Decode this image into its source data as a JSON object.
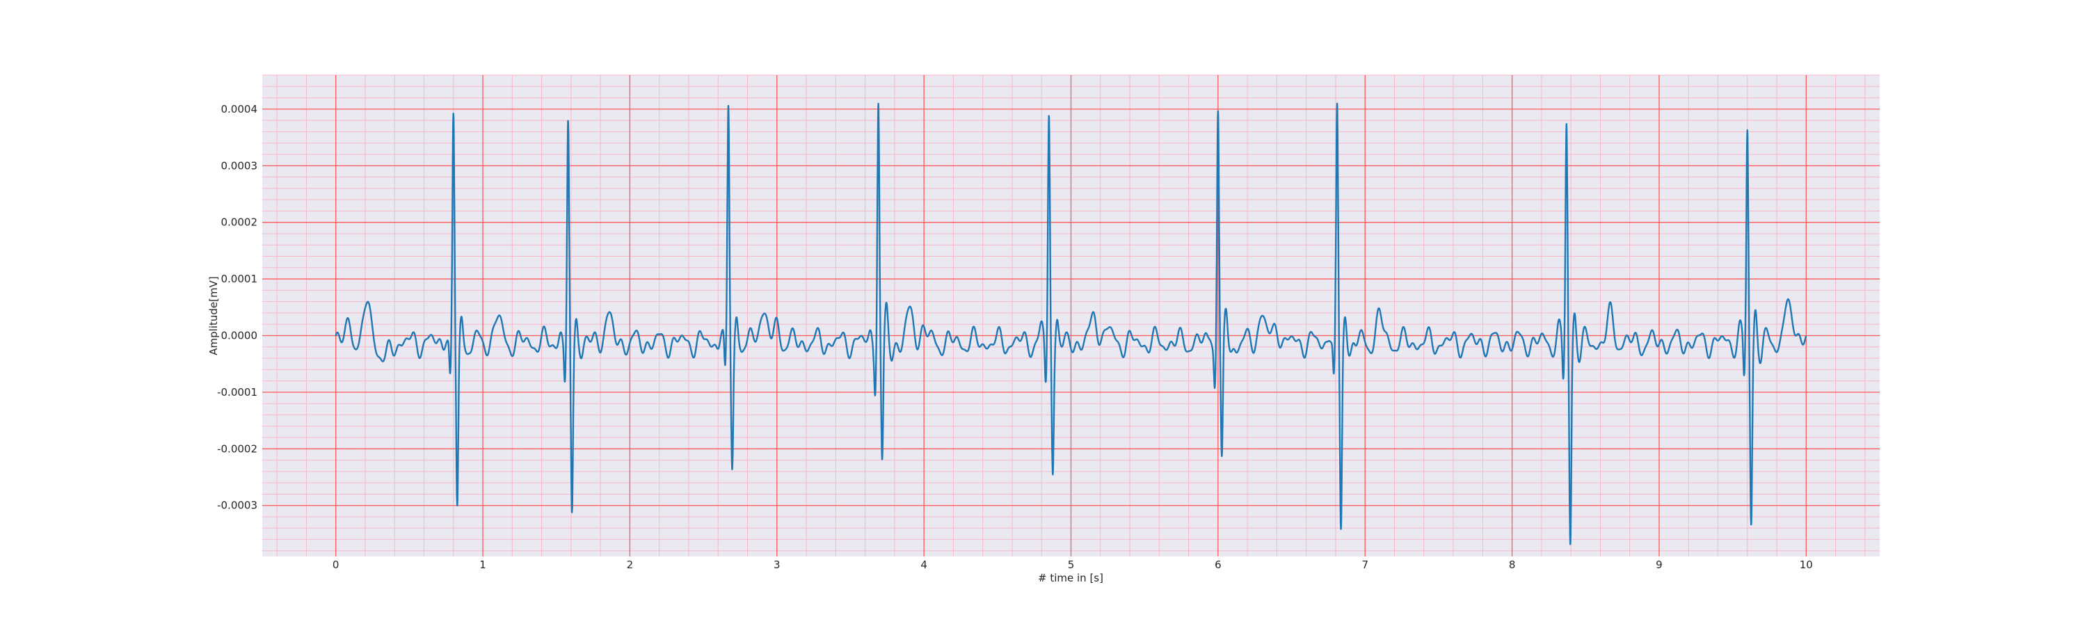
{
  "chart_data": {
    "type": "line",
    "title": "",
    "xlabel": "# time in [s]",
    "ylabel": "Amplitude[mV]",
    "xlim": [
      -0.5,
      10.5
    ],
    "ylim": [
      -0.00039,
      0.00046
    ],
    "x_ticks": [
      0,
      1,
      2,
      3,
      4,
      5,
      6,
      7,
      8,
      9,
      10
    ],
    "x_tick_labels": [
      "0",
      "1",
      "2",
      "3",
      "4",
      "5",
      "6",
      "7",
      "8",
      "9",
      "10"
    ],
    "y_ticks": [
      -0.0003,
      -0.0002,
      -0.0001,
      0.0,
      0.0001,
      0.0002,
      0.0003,
      0.0004
    ],
    "y_tick_labels": [
      "-0.0003",
      "-0.0002",
      "-0.0001",
      "0.0000",
      "0.0001",
      "0.0002",
      "0.0003",
      "0.0004"
    ],
    "x_minor_step": 0.2,
    "y_minor_step": 2e-05,
    "grid": true,
    "legend": "none",
    "colors": {
      "line": "#1f77b4",
      "background": "#eae9f2",
      "major_grid": "#ff5a5a",
      "minor_grid": "#f6b8c6",
      "text": "#262626"
    },
    "series": [
      {
        "beats": [
          {
            "t": 0.8,
            "r": 0.00039,
            "s": -0.0003
          },
          {
            "t": 1.58,
            "r": 0.00037,
            "s": -0.00031
          },
          {
            "t": 2.67,
            "r": 0.00041,
            "s": -0.00022
          },
          {
            "t": 3.69,
            "r": 0.00042,
            "s": -0.000225
          },
          {
            "t": 4.85,
            "r": 0.0004,
            "s": -0.00023
          },
          {
            "t": 6.0,
            "r": 0.00041,
            "s": -0.000225
          },
          {
            "t": 6.81,
            "r": 0.0004,
            "s": -0.000335
          },
          {
            "t": 8.37,
            "r": 0.00038,
            "s": -0.000355
          },
          {
            "t": 9.6,
            "r": 0.00037,
            "s": -0.000315
          }
        ],
        "waves": [
          {
            "t": 0.09,
            "a": 4e-05,
            "w": 0.018
          },
          {
            "t": 0.22,
            "a": 8e-05,
            "w": 0.02
          },
          {
            "t": 0.33,
            "a": -3.5e-05,
            "w": 0.03
          },
          {
            "t": 1.1,
            "a": 4.5e-05,
            "w": 0.022
          },
          {
            "t": 1.85,
            "a": 4.5e-05,
            "w": 0.025
          },
          {
            "t": 2.9,
            "a": 6e-05,
            "w": 0.025
          },
          {
            "t": 3.0,
            "a": 3e-05,
            "w": 0.02
          },
          {
            "t": 3.91,
            "a": 5.5e-05,
            "w": 0.022
          },
          {
            "t": 4.0,
            "a": 2.5e-05,
            "w": 0.02
          },
          {
            "t": 5.16,
            "a": 5e-05,
            "w": 0.022
          },
          {
            "t": 5.25,
            "a": 2.5e-05,
            "w": 0.02
          },
          {
            "t": 6.3,
            "a": 5.5e-05,
            "w": 0.022
          },
          {
            "t": 6.4,
            "a": 3e-05,
            "w": 0.02
          },
          {
            "t": 7.1,
            "a": 4.5e-05,
            "w": 0.022
          },
          {
            "t": 8.67,
            "a": 4.5e-05,
            "w": 0.022
          },
          {
            "t": 9.87,
            "a": 7.5e-05,
            "w": 0.02
          },
          {
            "t": 9.95,
            "a": 3e-05,
            "w": 0.02
          }
        ]
      }
    ]
  }
}
